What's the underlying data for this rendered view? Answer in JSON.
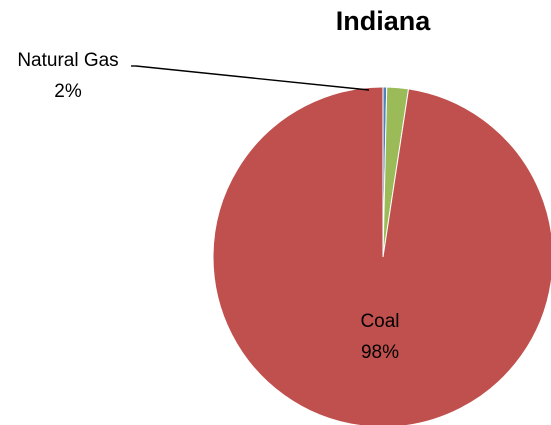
{
  "chart_data": {
    "type": "pie",
    "title": "Indiana",
    "slices": [
      {
        "label": "",
        "percent_label": "",
        "value": 0.35,
        "color": "#4F81BD"
      },
      {
        "label": "Natural Gas",
        "percent_label": "2%",
        "value": 2.05,
        "color": "#9BBB59"
      },
      {
        "label": "Coal",
        "percent_label": "98%",
        "value": 97.6,
        "color": "#C0504D"
      }
    ]
  }
}
